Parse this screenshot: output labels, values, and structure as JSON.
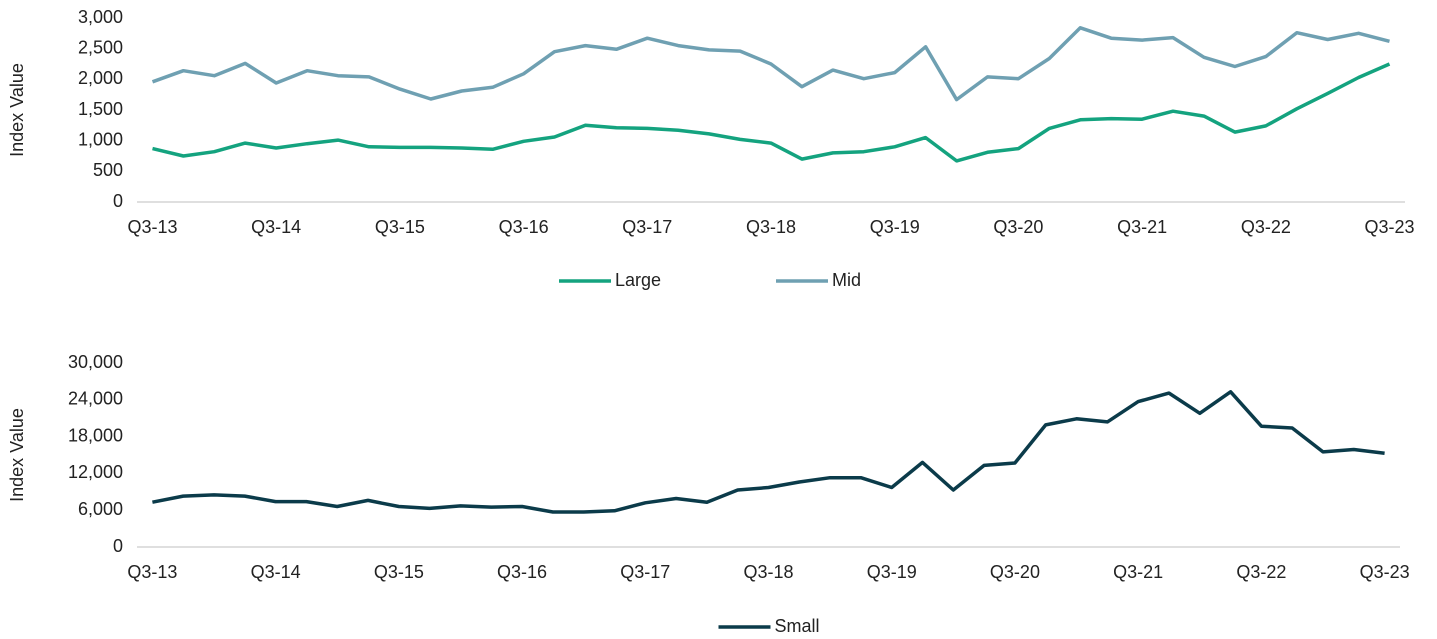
{
  "chart_data": [
    {
      "type": "line",
      "y_label": "Index Value",
      "categories": [
        "Q3-13",
        null,
        null,
        null,
        "Q3-14",
        null,
        null,
        null,
        "Q3-15",
        null,
        null,
        null,
        "Q3-16",
        null,
        null,
        null,
        "Q3-17",
        null,
        null,
        null,
        "Q3-18",
        null,
        null,
        null,
        "Q3-19",
        null,
        null,
        null,
        "Q3-20",
        null,
        null,
        null,
        "Q3-21",
        null,
        null,
        null,
        "Q3-22",
        null,
        null,
        null,
        "Q3-23"
      ],
      "series": [
        {
          "name": "Large",
          "color": "#14a37f",
          "values": [
            870,
            750,
            820,
            960,
            880,
            950,
            1010,
            900,
            890,
            890,
            880,
            860,
            990,
            1060,
            1250,
            1210,
            1200,
            1170,
            1110,
            1020,
            960,
            700,
            800,
            820,
            900,
            1050,
            670,
            810,
            870,
            1200,
            1340,
            1360,
            1350,
            1480,
            1400,
            1140,
            1240,
            1520,
            1770,
            2030,
            2250
          ]
        },
        {
          "name": "Mid",
          "color": "#6fa0b2",
          "values": [
            1960,
            2140,
            2060,
            2260,
            1940,
            2140,
            2060,
            2040,
            1840,
            1680,
            1810,
            1870,
            2090,
            2450,
            2550,
            2490,
            2670,
            2550,
            2480,
            2460,
            2250,
            1880,
            2150,
            2010,
            2110,
            2530,
            1670,
            2040,
            2010,
            2340,
            2840,
            2670,
            2640,
            2680,
            2360,
            2210,
            2370,
            2760,
            2650,
            2750,
            2620
          ]
        }
      ],
      "ylim": [
        0,
        3000
      ],
      "yticks": [
        0,
        500,
        {
          "value": 1000,
          "label": "1,000"
        },
        {
          "value": 1500,
          "label": "1,500"
        },
        {
          "value": 2000,
          "label": "2,000"
        },
        {
          "value": 2500,
          "label": "2,500"
        },
        {
          "value": 3000,
          "label": "3,000"
        }
      ],
      "legend": "bottom"
    },
    {
      "type": "line",
      "y_label": "Index Value",
      "categories": [
        "Q3-13",
        null,
        null,
        null,
        "Q3-14",
        null,
        null,
        null,
        "Q3-15",
        null,
        null,
        null,
        "Q3-16",
        null,
        null,
        null,
        "Q3-17",
        null,
        null,
        null,
        "Q3-18",
        null,
        null,
        null,
        "Q3-19",
        null,
        null,
        null,
        "Q3-20",
        null,
        null,
        null,
        "Q3-21",
        null,
        null,
        null,
        "Q3-22",
        null,
        null,
        null,
        "Q3-23"
      ],
      "series": [
        {
          "name": "Small",
          "color": "#0b3b4a",
          "values": [
            7300,
            8300,
            8500,
            8300,
            7400,
            7400,
            6600,
            7600,
            6600,
            6300,
            6700,
            6500,
            6600,
            5700,
            5700,
            5900,
            7200,
            7900,
            7300,
            9300,
            9700,
            10600,
            11300,
            11300,
            9700,
            13800,
            9300,
            13300,
            13700,
            19900,
            20900,
            20400,
            23700,
            25100,
            21800,
            25300,
            19700,
            19400,
            15500,
            15900,
            15300
          ]
        }
      ],
      "ylim": [
        0,
        30000
      ],
      "yticks": [
        0,
        {
          "value": 6000,
          "label": "6,000"
        },
        {
          "value": 12000,
          "label": "12,000"
        },
        {
          "value": 18000,
          "label": "18,000"
        },
        {
          "value": 24000,
          "label": "24,000"
        },
        {
          "value": 30000,
          "label": "30,000"
        }
      ],
      "legend": "bottom"
    }
  ]
}
